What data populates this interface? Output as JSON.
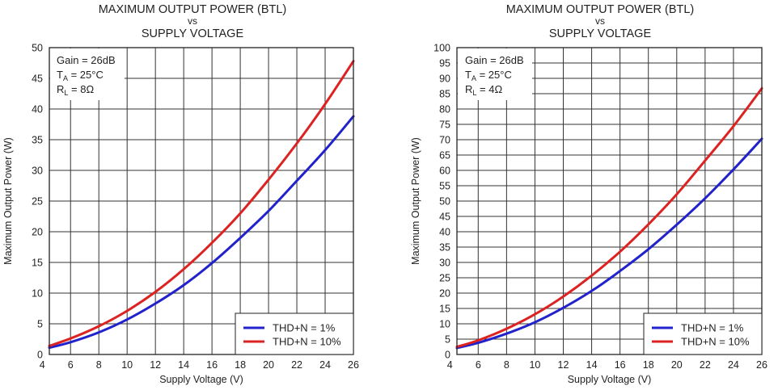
{
  "chart_data": [
    {
      "type": "line",
      "title": "MAXIMUM OUTPUT POWER (BTL)",
      "title_vs": "vs",
      "subtitle": "SUPPLY VOLTAGE",
      "xlabel": "Supply Voltage (V)",
      "ylabel": "Maximum Output Power (W)",
      "xlim": [
        4.5,
        26
      ],
      "ylim": [
        0,
        50
      ],
      "xticks": [
        4,
        6,
        8,
        10,
        12,
        14,
        16,
        18,
        20,
        22,
        24,
        26
      ],
      "yticks": [
        0,
        5,
        10,
        15,
        20,
        25,
        30,
        35,
        40,
        45,
        50
      ],
      "grid": true,
      "conditions": {
        "gain": "Gain = 26dB",
        "ta_main": "T",
        "ta_sub": "A",
        "ta_rest": " = 25°C",
        "rl_main": "R",
        "rl_sub": "L",
        "rl_rest": " = 8Ω"
      },
      "legend_position": "bottom-right",
      "series": [
        {
          "name": "THD+N = 1%",
          "color": "#2222cc",
          "x": [
            4.5,
            6,
            8,
            10,
            12,
            14,
            16,
            18,
            20,
            22,
            24,
            26
          ],
          "values": [
            1.1,
            2.0,
            3.6,
            5.7,
            8.3,
            11.3,
            14.9,
            19.0,
            23.4,
            28.3,
            33.3,
            38.8
          ]
        },
        {
          "name": "THD+N = 10%",
          "color": "#dd2222",
          "x": [
            4.5,
            6,
            8,
            10,
            12,
            14,
            16,
            18,
            20,
            22,
            24,
            26
          ],
          "values": [
            1.4,
            2.6,
            4.6,
            7.1,
            10.2,
            13.9,
            18.2,
            23.0,
            28.5,
            34.4,
            40.8,
            47.8
          ]
        }
      ]
    },
    {
      "type": "line",
      "title": "MAXIMUM OUTPUT POWER (BTL)",
      "title_vs": "vs",
      "subtitle": "SUPPLY VOLTAGE",
      "xlabel": "Supply Voltage (V)",
      "ylabel": "Maximum Output Power (W)",
      "xlim": [
        4.5,
        26
      ],
      "ylim": [
        0,
        100
      ],
      "xticks": [
        4,
        6,
        8,
        10,
        12,
        14,
        16,
        18,
        20,
        22,
        24,
        26
      ],
      "yticks": [
        0,
        5,
        10,
        15,
        20,
        25,
        30,
        35,
        40,
        45,
        50,
        55,
        60,
        65,
        70,
        75,
        80,
        85,
        90,
        95,
        100
      ],
      "grid": true,
      "conditions": {
        "gain": "Gain = 26dB",
        "ta_main": "T",
        "ta_sub": "A",
        "ta_rest": " = 25°C",
        "rl_main": "R",
        "rl_sub": "L",
        "rl_rest": " = 4Ω"
      },
      "legend_position": "bottom-right",
      "series": [
        {
          "name": "THD+N = 1%",
          "color": "#2222cc",
          "x": [
            4.5,
            6,
            8,
            10,
            12,
            14,
            16,
            18,
            20,
            22,
            24,
            26
          ],
          "values": [
            2.1,
            3.8,
            6.8,
            10.5,
            15.2,
            20.7,
            27.2,
            34.3,
            42.3,
            50.9,
            60.3,
            70.3
          ]
        },
        {
          "name": "THD+N = 10%",
          "color": "#dd2222",
          "x": [
            4.5,
            6,
            8,
            10,
            12,
            14,
            16,
            18,
            20,
            22,
            24,
            26
          ],
          "values": [
            2.5,
            4.6,
            8.4,
            13.1,
            18.9,
            25.7,
            33.5,
            42.4,
            52.2,
            63.2,
            74.4,
            86.7
          ]
        }
      ]
    }
  ]
}
